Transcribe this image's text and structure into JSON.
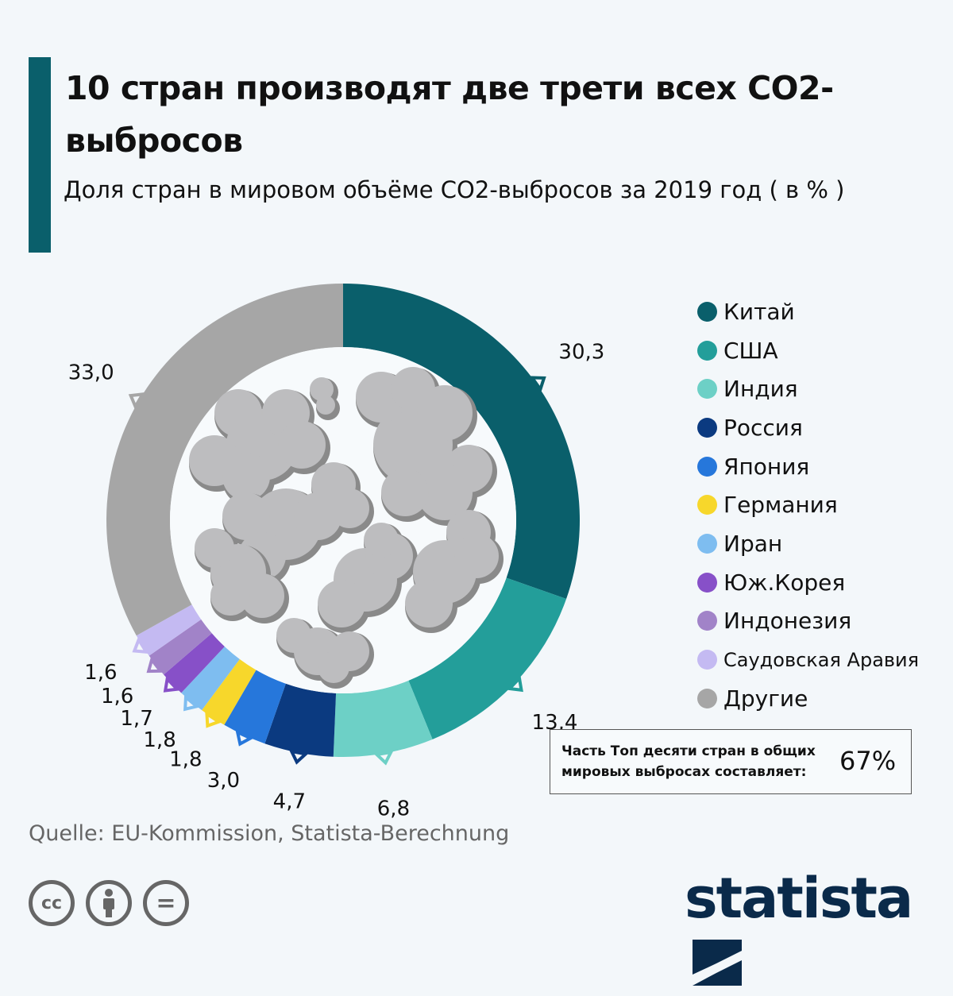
{
  "header": {
    "title": "10 стран производят две трети всех CO2-выбросов",
    "subtitle": "Доля стран в мировом объёме CO2-выбросов за 2019 год ( в % )"
  },
  "chart_data": {
    "type": "pie",
    "variant": "donut",
    "title": "10 стран производят две трети всех CO2-выбросов",
    "subtitle": "Доля стран в мировом объёме CO2-выбросов за 2019 год ( в % )",
    "legend_position": "right",
    "categories": [
      "Китай",
      "США",
      "Индия",
      "Россия",
      "Япония",
      "Германия",
      "Иран",
      "Юж.Корея",
      "Индонезия",
      "Саудовская Аравия",
      "Другие"
    ],
    "values": [
      30.3,
      13.4,
      6.8,
      4.7,
      3.0,
      1.8,
      1.8,
      1.7,
      1.6,
      1.6,
      33.0
    ],
    "value_labels": [
      "30,3",
      "13,4",
      "6,8",
      "4,7",
      "3,0",
      "1,8",
      "1,8",
      "1,7",
      "1,6",
      "1,6",
      "33,0"
    ],
    "colors": [
      "#0a5f6b",
      "#239e9a",
      "#6dd0c6",
      "#0b3a80",
      "#2677db",
      "#f7d72b",
      "#7ebdf0",
      "#8750c8",
      "#a183c8",
      "#c4baf2",
      "#a6a6a6"
    ]
  },
  "callout": {
    "text_line1": "Часть Топ десяти стран в общих",
    "text_line2": "мировых выбросах составляет:",
    "value": "67%"
  },
  "footer": {
    "source": "Quelle: EU-Kommission, Statista-Berechnung",
    "license_icons": [
      "cc-icon",
      "attribution-icon",
      "no-derivatives-icon"
    ],
    "cc_label": "cc",
    "nd_label": "=",
    "logo": "statista"
  }
}
